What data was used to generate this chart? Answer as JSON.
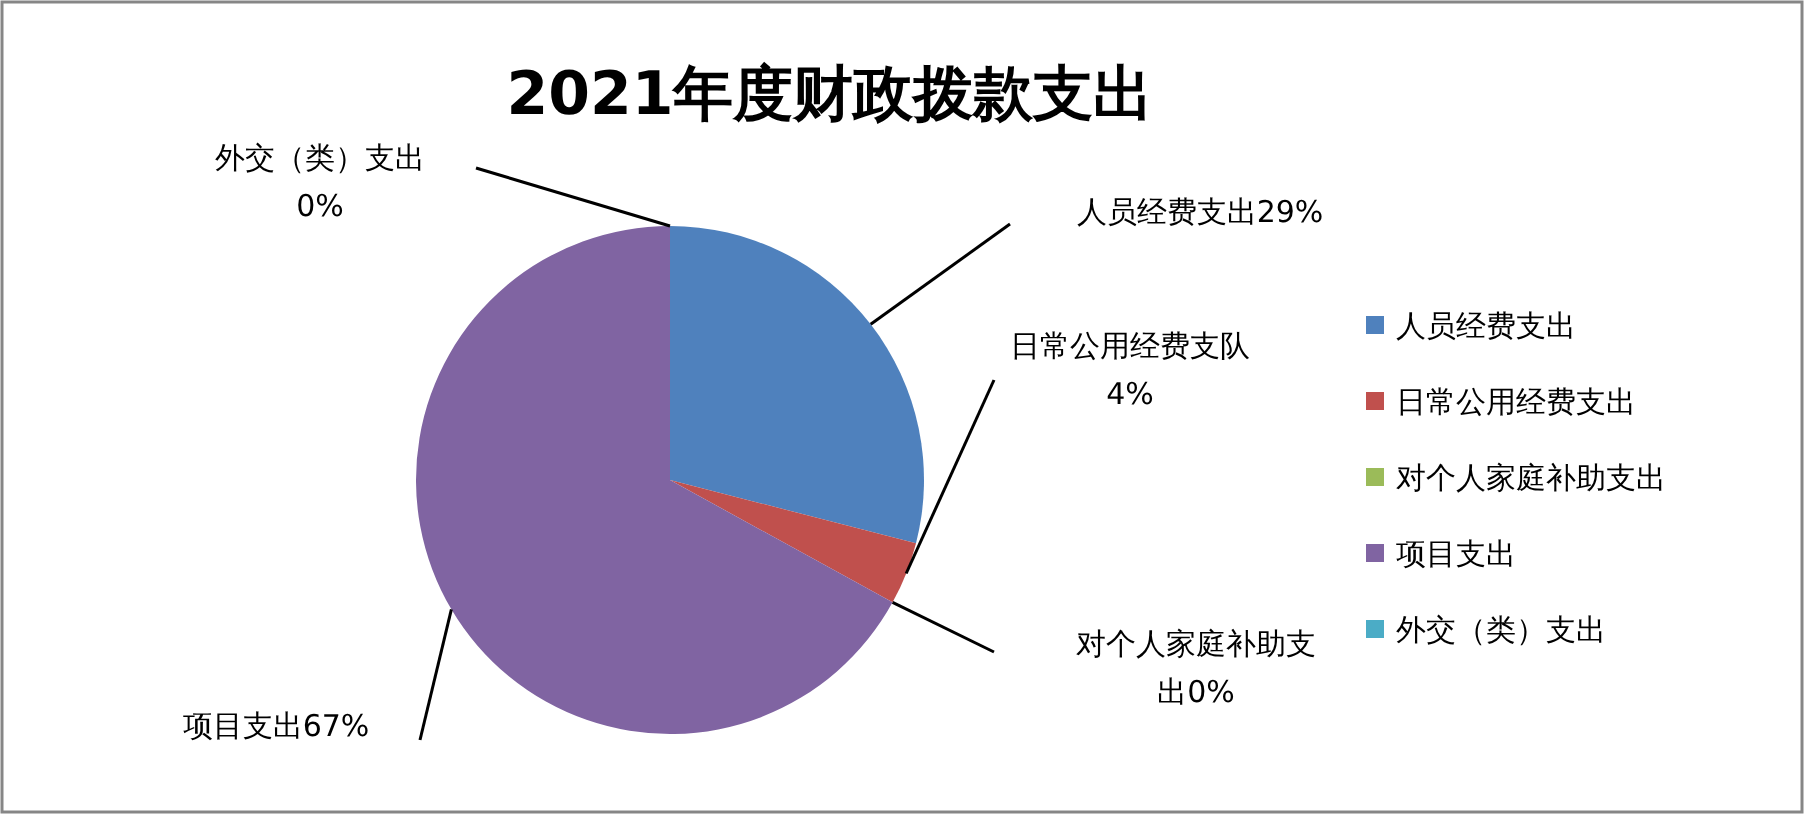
{
  "chart_data": {
    "type": "pie",
    "title": "2021年度财政拨款支出",
    "categories": [
      "人员经费支出",
      "日常公用经费支出",
      "对个人家庭补助支出",
      "项目支出",
      "外交（类）支出"
    ],
    "values": [
      29,
      4,
      0,
      67,
      0
    ],
    "colors": [
      "#4f81bd",
      "#c0504d",
      "#9bbb59",
      "#8064a2",
      "#4bacc6"
    ],
    "value_labels": [
      "人员经费支出29%",
      "日常公用经费支队4%",
      "对个人家庭补助支出0%",
      "项目支出67%",
      "外交（类）支出0%"
    ],
    "legend": "right"
  }
}
